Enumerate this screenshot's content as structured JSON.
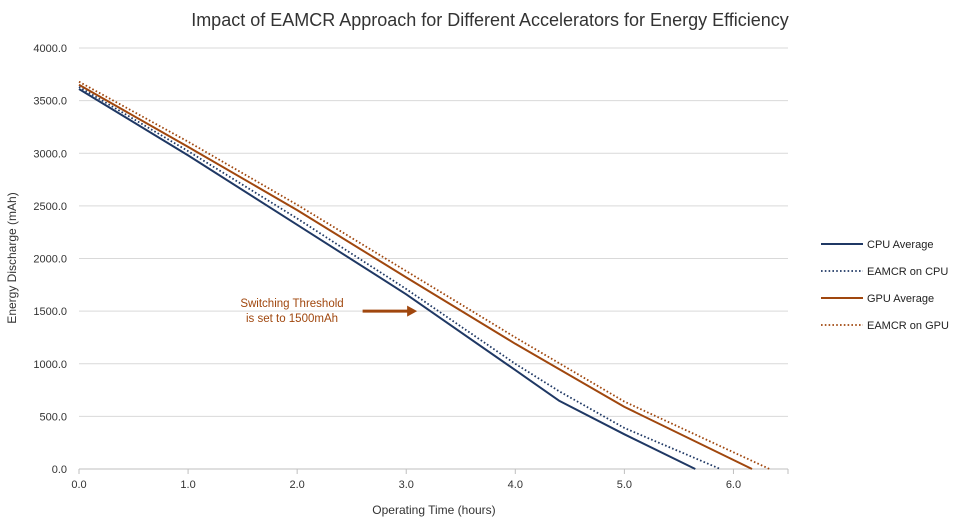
{
  "chart_data": {
    "type": "line",
    "title": "Impact of EAMCR Approach for Different Accelerators for Energy Efficiency",
    "xlabel": "Operating Time (hours)",
    "ylabel": "Energy Discharge (mAh)",
    "xlim": [
      0,
      6.5
    ],
    "ylim": [
      0,
      4000
    ],
    "xticks": [
      0,
      1,
      2,
      3,
      4,
      5,
      6
    ],
    "yticks": [
      0,
      500,
      1000,
      1500,
      2000,
      2500,
      3000,
      3500,
      4000
    ],
    "xtick_labels": [
      "0.0",
      "1.0",
      "2.0",
      "3.0",
      "4.0",
      "5.0",
      "6.0"
    ],
    "ytick_labels": [
      "0.0",
      "500.0",
      "1000.0",
      "1500.0",
      "2000.0",
      "2500.0",
      "3000.0",
      "3500.0",
      "4000.0"
    ],
    "grid": "horizontal",
    "legend_position": "right",
    "series": [
      {
        "name": "CPU Average",
        "color": "#1f3864",
        "style": "solid",
        "points": [
          [
            0,
            3610
          ],
          [
            1,
            2980
          ],
          [
            2,
            2320
          ],
          [
            3,
            1660
          ],
          [
            4,
            940
          ],
          [
            4.4,
            650
          ],
          [
            5,
            330
          ],
          [
            5.65,
            0
          ]
        ]
      },
      {
        "name": "EAMCR on CPU",
        "color": "#1f3864",
        "style": "dotted",
        "points": [
          [
            0,
            3630
          ],
          [
            1,
            3020
          ],
          [
            2,
            2380
          ],
          [
            3,
            1710
          ],
          [
            4,
            1000
          ],
          [
            4.4,
            740
          ],
          [
            5,
            390
          ],
          [
            5.88,
            0
          ]
        ]
      },
      {
        "name": "GPU Average",
        "color": "#a0470e",
        "style": "solid",
        "points": [
          [
            0,
            3650
          ],
          [
            1,
            3060
          ],
          [
            2,
            2460
          ],
          [
            3,
            1820
          ],
          [
            4,
            1190
          ],
          [
            5,
            590
          ],
          [
            6.17,
            0
          ]
        ]
      },
      {
        "name": "EAMCR on GPU",
        "color": "#a0470e",
        "style": "dotted",
        "points": [
          [
            0,
            3680
          ],
          [
            1,
            3110
          ],
          [
            2,
            2510
          ],
          [
            3,
            1880
          ],
          [
            4,
            1250
          ],
          [
            5,
            640
          ],
          [
            6.33,
            0
          ]
        ]
      }
    ],
    "annotation": {
      "lines": [
        "Switching Threshold",
        "is set to 1500mAh"
      ],
      "color": "#a0470e",
      "arrow": {
        "from": [
          2.6,
          1500
        ],
        "to": [
          3.1,
          1500
        ]
      }
    }
  }
}
